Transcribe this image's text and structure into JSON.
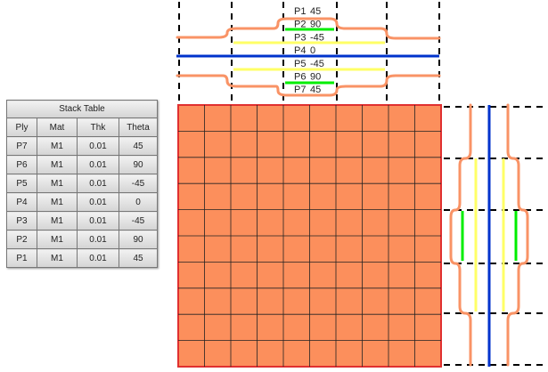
{
  "stack_table": {
    "title": "Stack Table",
    "columns": [
      "Ply",
      "Mat",
      "Thk",
      "Theta"
    ],
    "rows": [
      [
        "P7",
        "M1",
        "0.01",
        "45"
      ],
      [
        "P6",
        "M1",
        "0.01",
        "90"
      ],
      [
        "P5",
        "M1",
        "0.01",
        "-45"
      ],
      [
        "P4",
        "M1",
        "0.01",
        "0"
      ],
      [
        "P3",
        "M1",
        "0.01",
        "-45"
      ],
      [
        "P2",
        "M1",
        "0.01",
        "90"
      ],
      [
        "P1",
        "M1",
        "0.01",
        "45"
      ]
    ]
  },
  "ply_labels": [
    {
      "ply": "P1",
      "angle": "45"
    },
    {
      "ply": "P2",
      "angle": "90"
    },
    {
      "ply": "P3",
      "angle": "-45"
    },
    {
      "ply": "P4",
      "angle": "0"
    },
    {
      "ply": "P5",
      "angle": "-45"
    },
    {
      "ply": "P6",
      "angle": "90"
    },
    {
      "ply": "P7",
      "angle": "45"
    }
  ],
  "colors": {
    "mesh": "#fc8f5c",
    "mesh_line": "#000000",
    "border": "#e03030",
    "curve": "#f99366",
    "angle_0": "#0033cc",
    "angle_45": "#ffff66",
    "angle_90": "#00ee00"
  }
}
